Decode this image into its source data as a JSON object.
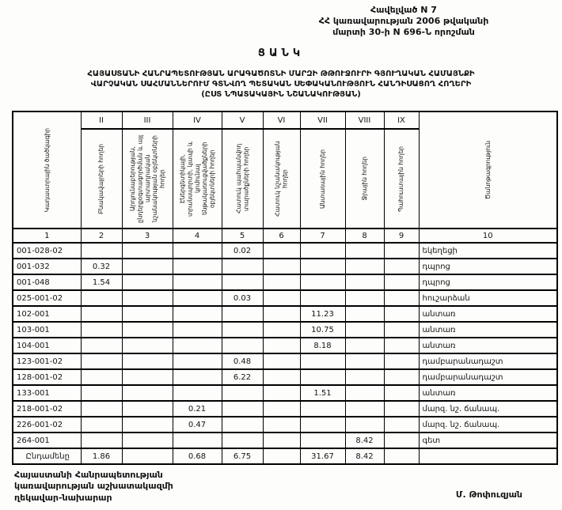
{
  "annex": {
    "line1": "Հավելված N 7",
    "line2": "ՀՀ կառավարության 2006 թվականի",
    "line3": "մարտի 30-ի N 696-Ն որոշման"
  },
  "title": "ՑԱՆԿ",
  "subtitle": {
    "line1": "ՀԱՅԱՍՏԱՆԻ ՀԱՆՐԱՊԵՏՈՒԹՅԱՆ ԱՐԱԳԱԾՈՏՆԻ ՄԱՐԶԻ ԹԹՈՒՋՈՒՐԻ ԳՅՈՒՂԱԿԱՆ ՀԱՄԱՅՆՔԻ",
    "line2": "ՎԱՐՉԱԿԱՆ ՍԱՀՄԱՆՆԵՐՈՒՄ ԳՏՆՎՈՂ ՊԵՏԱԿԱՆ ՍԵՓԱԿԱՆՈՒԹՅՈՒՆ ՀԱՆԴԻՍԱՑՈՂ ՀՈՂԵՐԻ",
    "line3": "(ԸՍՏ ՆՊԱՏԱԿԱՅԻՆ ՆՇԱՆԱԿՈՒԹՅԱՆ)"
  },
  "table": {
    "numerals": [
      "II",
      "III",
      "IV",
      "V",
      "VI",
      "VII",
      "VIII",
      "IX"
    ],
    "headers": [
      "Կադաստրային ծածկագիր",
      "Բնակավայրերի հողեր",
      "Արդյունաբերության, ընդերքօգտագործման և այլ արտադրական նշանակության օբյեկտների հողեր",
      "Էներգետիկայի, տրանսպորտի, կապի և կոմունալ ենթակառուցվածքների օբյեկտների հողեր",
      "Հատուկ պահպանվող տարածքների հողեր",
      "Հատուկ նշանակության հողեր",
      "Անտառային հողեր",
      "Ջրային հողեր",
      "Պահուստային հողեր",
      "Ծանոթագրություն"
    ],
    "numbers": [
      "1",
      "2",
      "3",
      "4",
      "5",
      "6",
      "7",
      "8",
      "9",
      "10"
    ],
    "rows": [
      {
        "code": "001-028-02",
        "c2": "",
        "c3": "",
        "c4": "",
        "c5": "0.02",
        "c6": "",
        "c7": "",
        "c8": "",
        "c9": "",
        "note": "եկեղեցի"
      },
      {
        "code": "001-032",
        "c2": "0.32",
        "c3": "",
        "c4": "",
        "c5": "",
        "c6": "",
        "c7": "",
        "c8": "",
        "c9": "",
        "note": "դպրոց"
      },
      {
        "code": "001-048",
        "c2": "1.54",
        "c3": "",
        "c4": "",
        "c5": "",
        "c6": "",
        "c7": "",
        "c8": "",
        "c9": "",
        "note": "դպրոց"
      },
      {
        "code": "025-001-02",
        "c2": "",
        "c3": "",
        "c4": "",
        "c5": "0.03",
        "c6": "",
        "c7": "",
        "c8": "",
        "c9": "",
        "note": "հուշարձան"
      },
      {
        "code": "102-001",
        "c2": "",
        "c3": "",
        "c4": "",
        "c5": "",
        "c6": "",
        "c7": "11.23",
        "c8": "",
        "c9": "",
        "note": "անտառ"
      },
      {
        "code": "103-001",
        "c2": "",
        "c3": "",
        "c4": "",
        "c5": "",
        "c6": "",
        "c7": "10.75",
        "c8": "",
        "c9": "",
        "note": "անտառ"
      },
      {
        "code": "104-001",
        "c2": "",
        "c3": "",
        "c4": "",
        "c5": "",
        "c6": "",
        "c7": "8.18",
        "c8": "",
        "c9": "",
        "note": "անտառ"
      },
      {
        "code": "123-001-02",
        "c2": "",
        "c3": "",
        "c4": "",
        "c5": "0.48",
        "c6": "",
        "c7": "",
        "c8": "",
        "c9": "",
        "note": "դամբարանադաշտ"
      },
      {
        "code": "128-001-02",
        "c2": "",
        "c3": "",
        "c4": "",
        "c5": "6.22",
        "c6": "",
        "c7": "",
        "c8": "",
        "c9": "",
        "note": "դամբարանադաշտ"
      },
      {
        "code": "133-001",
        "c2": "",
        "c3": "",
        "c4": "",
        "c5": "",
        "c6": "",
        "c7": "1.51",
        "c8": "",
        "c9": "",
        "note": "անտառ"
      },
      {
        "code": "218-001-02",
        "c2": "",
        "c3": "",
        "c4": "0.21",
        "c5": "",
        "c6": "",
        "c7": "",
        "c8": "",
        "c9": "",
        "note": "մարզ. նշ. ճանապ."
      },
      {
        "code": "226-001-02",
        "c2": "",
        "c3": "",
        "c4": "0.47",
        "c5": "",
        "c6": "",
        "c7": "",
        "c8": "",
        "c9": "",
        "note": "մարզ. նշ. ճանապ."
      },
      {
        "code": "264-001",
        "c2": "",
        "c3": "",
        "c4": "",
        "c5": "",
        "c6": "",
        "c7": "",
        "c8": "8.42",
        "c9": "",
        "note": "գետ"
      }
    ],
    "total": {
      "code": "Ընդամենը",
      "c2": "1.86",
      "c3": "",
      "c4": "0.68",
      "c5": "6.75",
      "c6": "",
      "c7": "31.67",
      "c8": "8.42",
      "c9": "",
      "note": ""
    }
  },
  "footer": {
    "left_line1": "Հայաստանի Հանրապետության",
    "left_line2": "կառավարության աշխատակազմի",
    "left_line3": "ղեկավար-նախարար",
    "signer": "Մ. Թոփուզյան"
  }
}
